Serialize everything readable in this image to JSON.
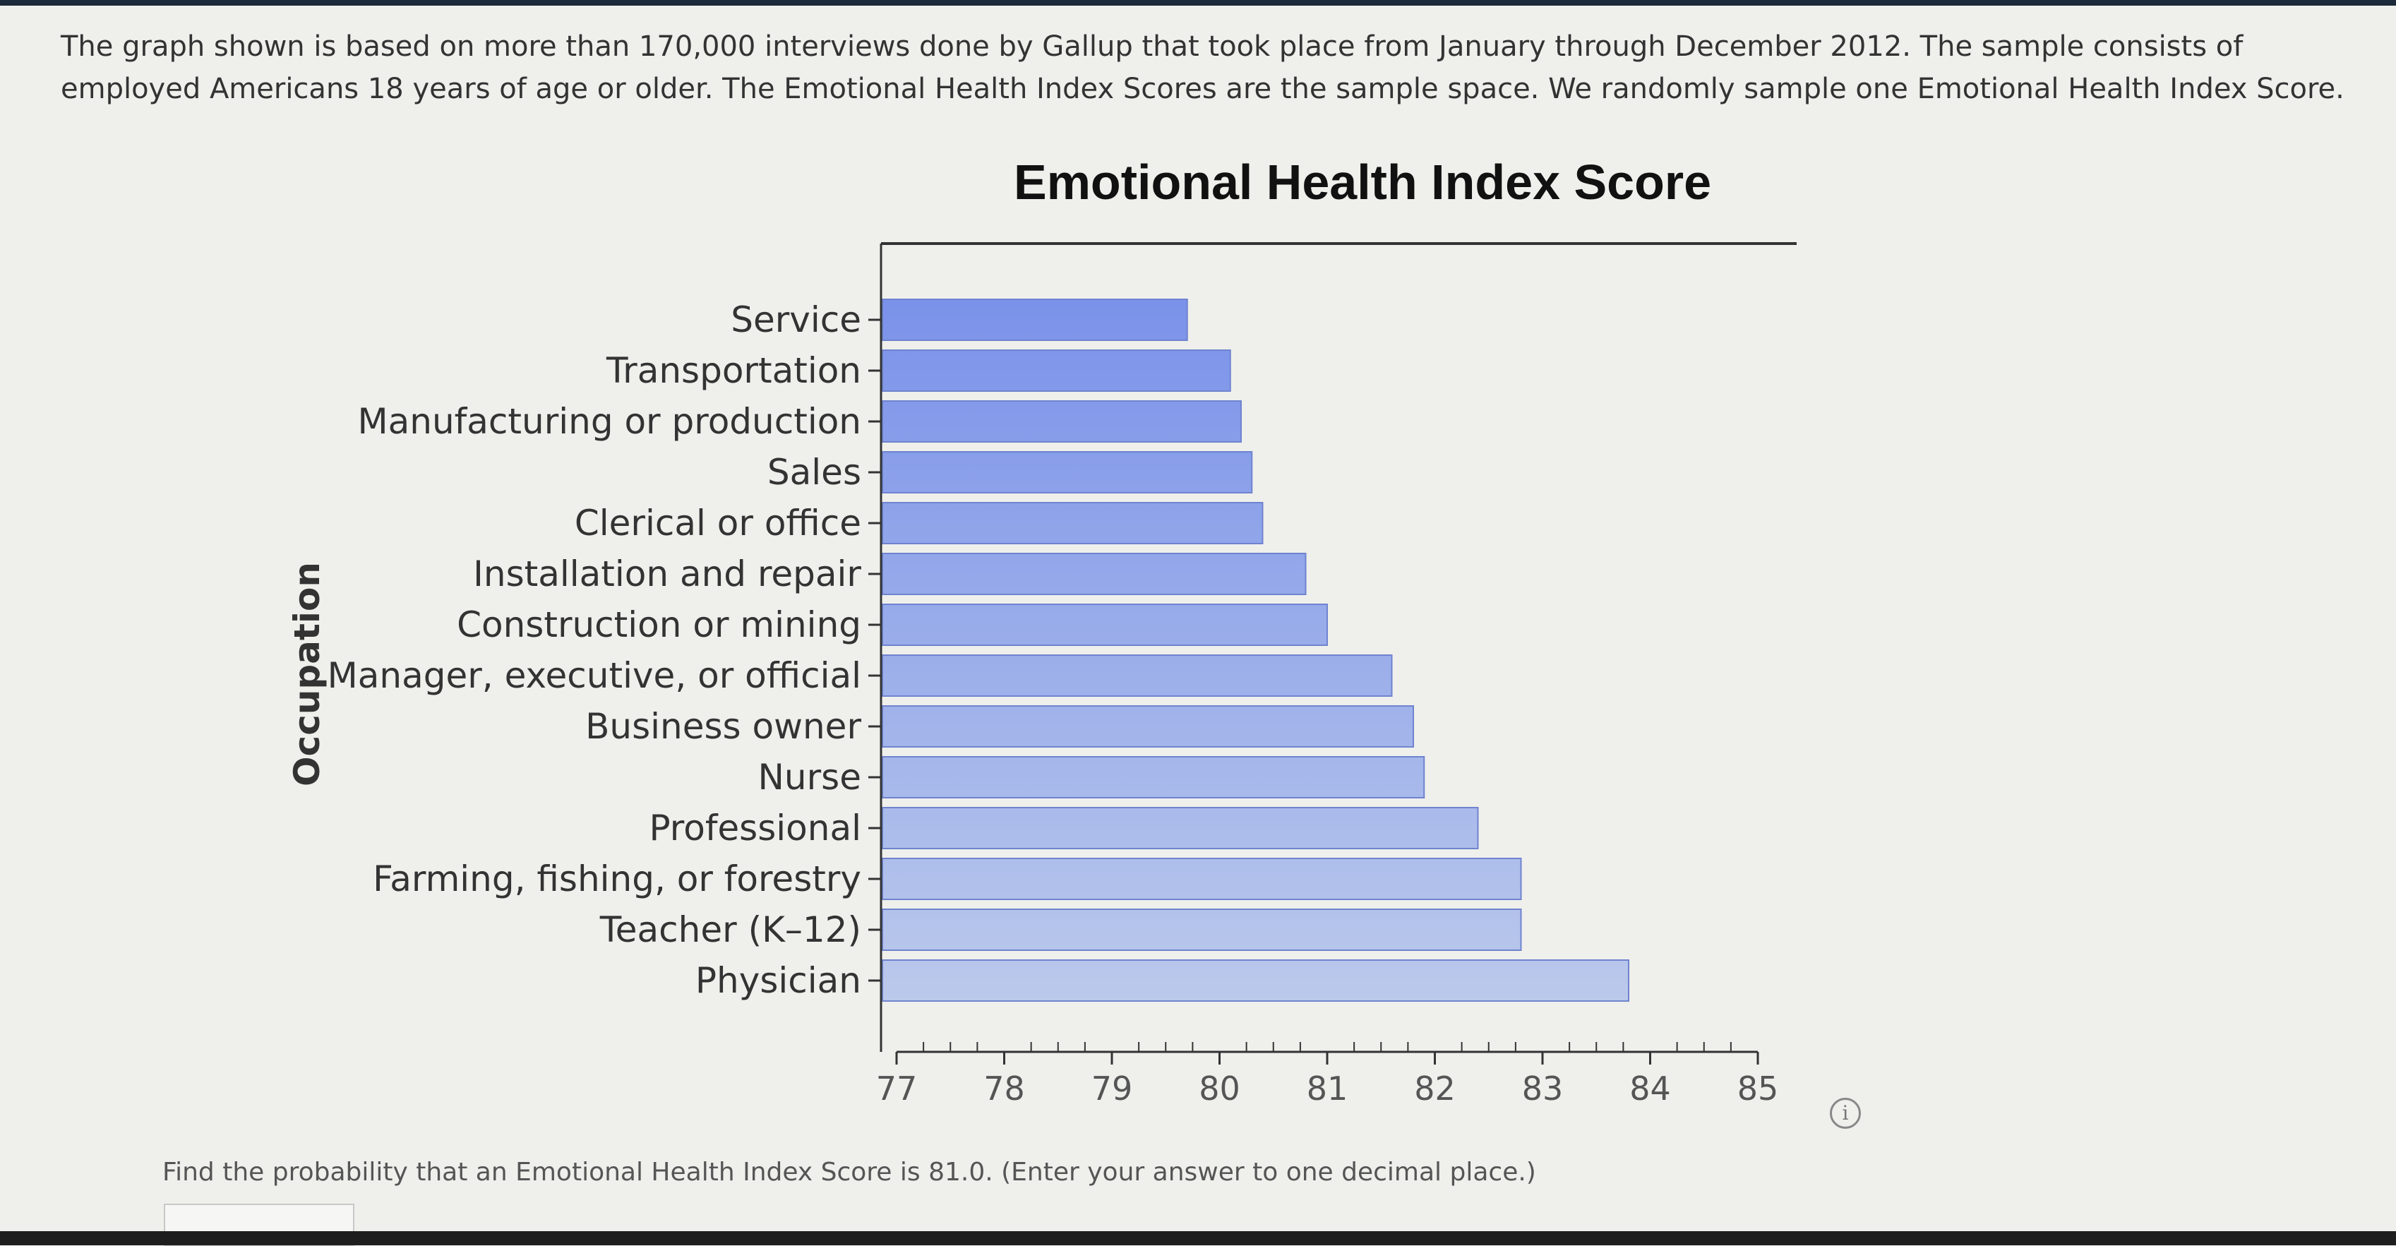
{
  "intro_text": "The graph shown is based on more than 170,000 interviews done by Gallup that took place from January through December 2012. The sample consists of employed Americans 18 years of age or older. The Emotional Health Index Scores are the sample space. We randomly sample one Emotional Health Index Score.",
  "question_text": "Find the probability that an Emotional Health Index Score is 81.0. (Enter your answer to one decimal place.)",
  "info_icon_glyph": "i",
  "colors": {
    "bar_top": "#7b92ea",
    "bar_bottom": "#bccaeb",
    "axis": "#333333"
  },
  "chart_data": {
    "type": "bar",
    "orientation": "horizontal",
    "title": "Emotional Health Index Score",
    "xlabel": "",
    "ylabel": "Occupation",
    "xlim": [
      77,
      85
    ],
    "xticks": [
      77,
      78,
      79,
      80,
      81,
      82,
      83,
      84,
      85
    ],
    "categories": [
      "Service",
      "Transportation",
      "Manufacturing or production",
      "Sales",
      "Clerical or office",
      "Installation and repair",
      "Construction or mining",
      "Manager, executive, or official",
      "Business owner",
      "Nurse",
      "Professional",
      "Farming, fishing, or forestry",
      "Teacher (K–12)",
      "Physician"
    ],
    "values": [
      79.7,
      80.1,
      80.2,
      80.3,
      80.4,
      80.8,
      81.0,
      81.6,
      81.8,
      81.9,
      82.4,
      82.8,
      82.8,
      83.8
    ],
    "grid": false,
    "legend": "none"
  }
}
